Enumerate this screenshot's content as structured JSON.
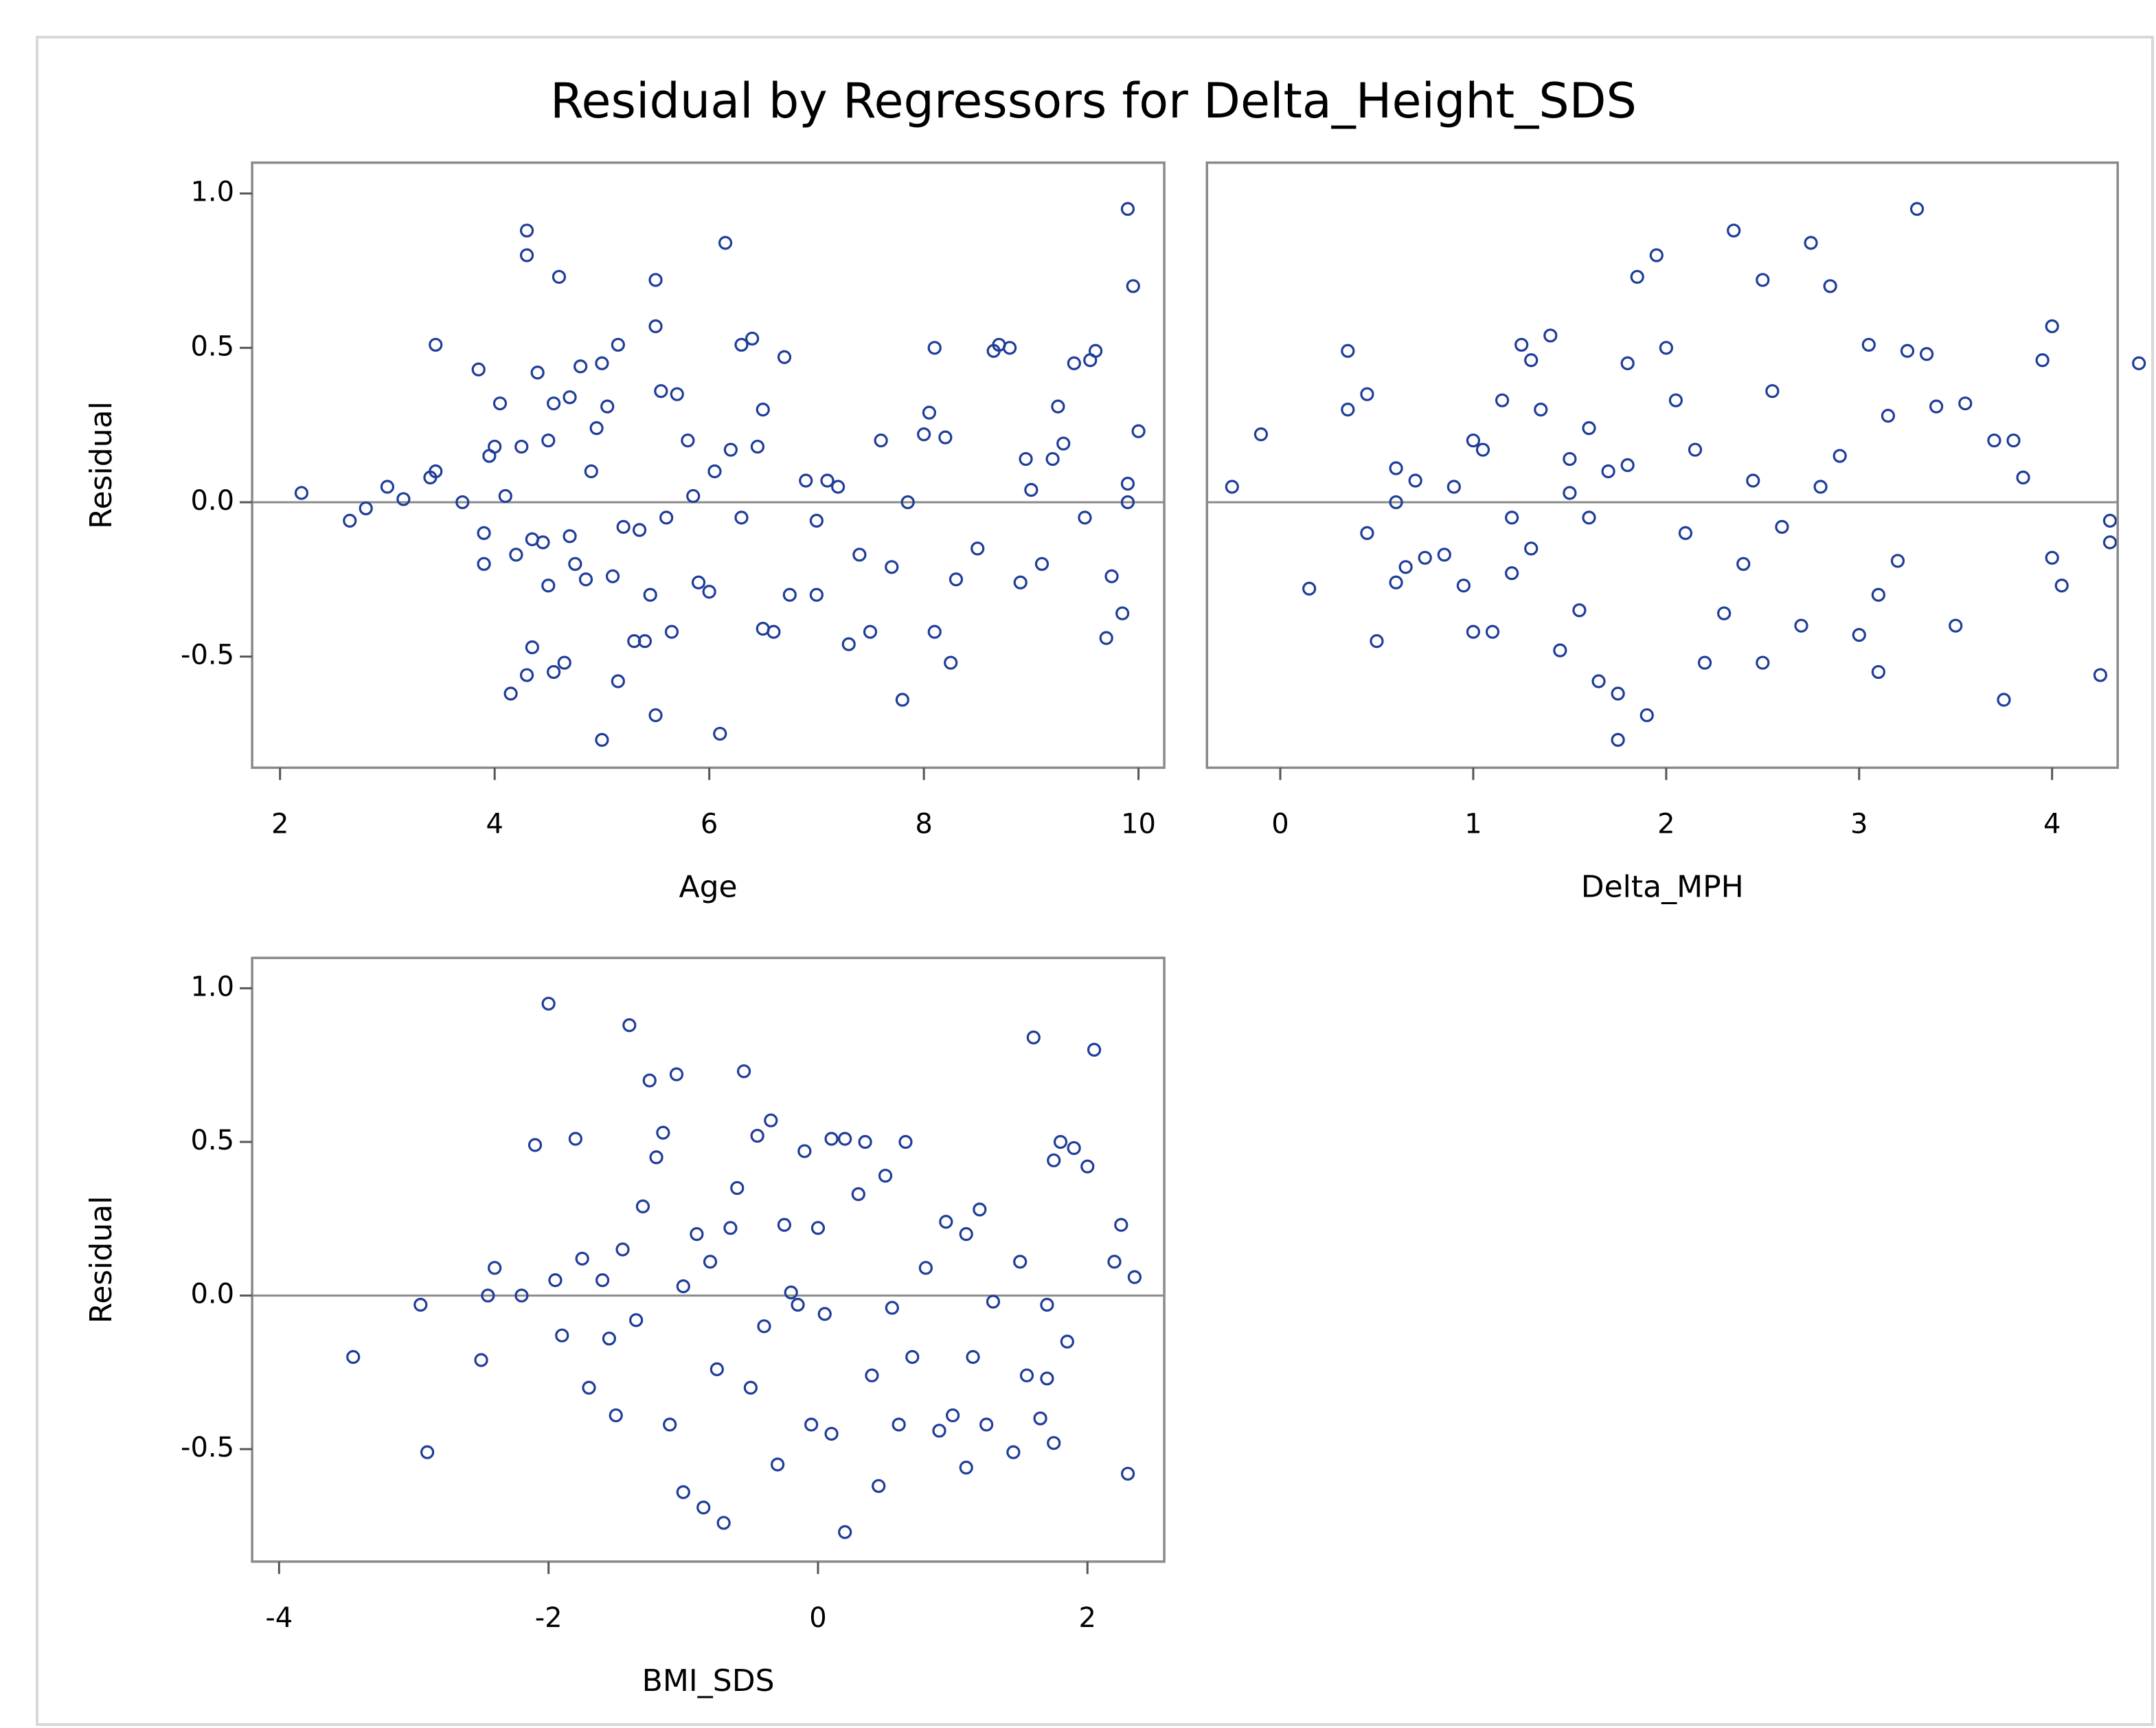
{
  "title": "Residual by Regressors for Delta_Height_SDS",
  "chart_data": [
    {
      "type": "scatter",
      "x_label": "Age",
      "y_label": "Residual",
      "color": "#1f3d99",
      "reference_line": 0,
      "xlim": [
        1.74,
        10.24
      ],
      "ylim": [
        -0.86,
        1.1
      ],
      "xticks": [
        2,
        4,
        6,
        8,
        10
      ],
      "yticks": [
        -0.5,
        {
          "value": 0,
          "label": "0.0"
        },
        0.5,
        {
          "value": 1,
          "label": "1.0"
        }
      ],
      "x": [
        2.2,
        2.65,
        2.8,
        3.0,
        3.15,
        3.4,
        3.45,
        3.45,
        3.7,
        3.85,
        3.9,
        3.9,
        3.95,
        4.0,
        4.05,
        4.1,
        4.15,
        4.2,
        4.25,
        4.3,
        4.3,
        4.3,
        4.35,
        4.35,
        4.4,
        4.45,
        4.5,
        4.5,
        4.55,
        4.55,
        4.6,
        4.65,
        4.7,
        4.7,
        4.75,
        4.8,
        4.85,
        4.9,
        4.95,
        5.0,
        5.0,
        5.05,
        5.1,
        5.15,
        5.15,
        5.2,
        5.3,
        5.35,
        5.4,
        5.45,
        5.5,
        5.5,
        5.5,
        5.55,
        5.6,
        5.65,
        5.7,
        5.8,
        5.85,
        5.9,
        6.0,
        6.05,
        6.1,
        6.15,
        6.2,
        6.3,
        6.3,
        6.4,
        6.45,
        6.5,
        6.5,
        6.6,
        6.7,
        6.75,
        6.9,
        7.0,
        7.0,
        7.1,
        7.2,
        7.3,
        7.4,
        7.5,
        7.6,
        7.7,
        7.8,
        7.85,
        8.0,
        8.05,
        8.1,
        8.1,
        8.2,
        8.25,
        8.3,
        8.5,
        8.65,
        8.7,
        8.8,
        8.9,
        8.95,
        9.0,
        9.1,
        9.2,
        9.25,
        9.3,
        9.4,
        9.5,
        9.55,
        9.6,
        9.7,
        9.75,
        9.85,
        9.9,
        9.9,
        9.95,
        10.0,
        9.9
      ],
      "values": [
        0.03,
        -0.06,
        -0.02,
        0.05,
        0.01,
        0.08,
        0.51,
        0.1,
        0,
        0.43,
        -0.1,
        -0.2,
        0.15,
        0.18,
        0.32,
        0.02,
        -0.62,
        -0.17,
        0.18,
        0.88,
        0.8,
        -0.56,
        -0.12,
        -0.47,
        0.42,
        -0.13,
        0.2,
        -0.27,
        0.32,
        -0.55,
        0.73,
        -0.52,
        0.34,
        -0.11,
        -0.2,
        0.44,
        -0.25,
        0.1,
        0.24,
        0.45,
        -0.77,
        0.31,
        -0.24,
        0.51,
        -0.58,
        -0.08,
        -0.45,
        -0.09,
        -0.45,
        -0.3,
        0.72,
        0.57,
        -0.69,
        0.36,
        -0.05,
        -0.42,
        0.35,
        0.2,
        0.02,
        -0.26,
        -0.29,
        0.1,
        -0.75,
        0.84,
        0.17,
        0.51,
        -0.05,
        0.53,
        0.18,
        -0.41,
        0.3,
        -0.42,
        0.47,
        -0.3,
        0.07,
        -0.06,
        -0.3,
        0.07,
        0.05,
        -0.46,
        -0.17,
        -0.42,
        0.2,
        -0.21,
        -0.64,
        0,
        0.22,
        0.29,
        0.5,
        -0.42,
        0.21,
        -0.52,
        -0.25,
        -0.15,
        0.49,
        0.51,
        0.5,
        -0.26,
        0.14,
        0.04,
        -0.2,
        0.14,
        0.31,
        0.19,
        0.45,
        -0.05,
        0.46,
        0.49,
        -0.44,
        -0.24,
        -0.36,
        0.95,
        0.06,
        0.7,
        0.23,
        0
      ]
    },
    {
      "type": "scatter",
      "x_label": "Delta_MPH",
      "color": "#1f3d99",
      "reference_line": 0,
      "xlim": [
        -0.38,
        4.34
      ],
      "ylim": [
        -0.86,
        1.1
      ],
      "xticks": [
        0,
        1,
        2,
        3,
        4
      ],
      "x": [
        -0.25,
        -0.1,
        0.15,
        0.35,
        0.35,
        0.45,
        0.45,
        0.5,
        0.6,
        0.6,
        0.6,
        0.65,
        0.7,
        0.75,
        0.85,
        0.9,
        0.95,
        1.0,
        1.0,
        1.05,
        1.1,
        1.15,
        1.2,
        1.25,
        1.3,
        1.3,
        1.35,
        1.4,
        1.45,
        1.5,
        1.55,
        1.6,
        1.65,
        1.7,
        1.75,
        1.75,
        1.8,
        1.85,
        1.9,
        1.95,
        2.0,
        2.05,
        2.1,
        2.15,
        2.2,
        2.3,
        2.35,
        2.45,
        2.5,
        2.5,
        2.55,
        2.6,
        2.7,
        2.75,
        2.8,
        2.85,
        2.9,
        3.0,
        3.05,
        3.1,
        3.1,
        3.15,
        3.2,
        3.25,
        3.3,
        3.35,
        3.4,
        3.5,
        3.55,
        3.7,
        3.75,
        3.8,
        3.85,
        3.95,
        4.0,
        4.0,
        4.05,
        4.25,
        4.3,
        4.3,
        4.45,
        1.5,
        1.6,
        1.8,
        1.2,
        2.4
      ],
      "values": [
        0.05,
        0.22,
        -0.28,
        0.49,
        0.3,
        0.35,
        -0.1,
        -0.45,
        0.11,
        0,
        -0.26,
        -0.21,
        0.07,
        -0.18,
        -0.17,
        0.05,
        -0.27,
        0.2,
        -0.42,
        0.17,
        -0.42,
        0.33,
        -0.05,
        0.51,
        0.46,
        -0.15,
        0.3,
        0.54,
        -0.48,
        0.14,
        -0.35,
        0.24,
        -0.58,
        0.1,
        -0.62,
        -0.77,
        0.45,
        0.73,
        -0.69,
        0.8,
        0.5,
        0.33,
        -0.1,
        0.17,
        -0.52,
        -0.36,
        0.88,
        0.07,
        0.72,
        -0.52,
        0.36,
        -0.08,
        -0.4,
        0.84,
        0.05,
        0.7,
        0.15,
        -0.43,
        0.51,
        -0.3,
        -0.55,
        0.28,
        -0.19,
        0.49,
        0.95,
        0.48,
        0.31,
        -0.4,
        0.32,
        0.2,
        -0.64,
        0.2,
        0.08,
        0.46,
        0.57,
        -0.18,
        -0.27,
        -0.56,
        -0.06,
        -0.13,
        0.45,
        0.03,
        -0.05,
        0.12,
        -0.23,
        -0.2
      ]
    },
    {
      "type": "scatter",
      "x_label": "BMI_SDS",
      "y_label": "Residual",
      "color": "#1f3d99",
      "reference_line": 0,
      "xlim": [
        -4.2,
        2.57
      ],
      "ylim": [
        -0.866,
        1.099
      ],
      "xticks": [
        -4,
        -2,
        0,
        2
      ],
      "yticks": [
        -0.5,
        {
          "value": 0,
          "label": "0.0"
        },
        0.5,
        {
          "value": 1,
          "label": "1.0"
        }
      ],
      "x": [
        -3.45,
        -2.95,
        -2.9,
        -2.5,
        -2.45,
        -2.4,
        -2.2,
        -2.1,
        -2.0,
        -1.95,
        -1.9,
        -1.8,
        -1.75,
        -1.7,
        -1.6,
        -1.55,
        -1.5,
        -1.45,
        -1.4,
        -1.35,
        -1.3,
        -1.25,
        -1.2,
        -1.15,
        -1.1,
        -1.05,
        -1.0,
        -1.0,
        -0.9,
        -0.85,
        -0.8,
        -0.75,
        -0.7,
        -0.65,
        -0.6,
        -0.55,
        -0.5,
        -0.45,
        -0.4,
        -0.35,
        -0.3,
        -0.25,
        -0.2,
        -0.15,
        -0.1,
        -0.05,
        0,
        0.05,
        0.1,
        0.1,
        0.2,
        0.2,
        0.3,
        0.35,
        0.4,
        0.45,
        0.5,
        0.55,
        0.6,
        0.65,
        0.7,
        0.8,
        0.9,
        0.95,
        1.0,
        1.1,
        1.1,
        1.15,
        1.2,
        1.25,
        1.3,
        1.45,
        1.5,
        1.55,
        1.6,
        1.65,
        1.7,
        1.7,
        1.75,
        1.75,
        1.8,
        1.85,
        1.9,
        2.0,
        2.05,
        2.2,
        2.25,
        2.3,
        2.35
      ],
      "values": [
        -0.2,
        -0.03,
        -0.51,
        -0.21,
        0,
        0.09,
        0,
        0.49,
        0.95,
        0.05,
        -0.13,
        0.51,
        0.12,
        -0.3,
        0.05,
        -0.14,
        -0.39,
        0.15,
        0.88,
        -0.08,
        0.29,
        0.7,
        0.45,
        0.53,
        -0.42,
        0.72,
        0.03,
        -0.64,
        0.2,
        -0.69,
        0.11,
        -0.24,
        -0.74,
        0.22,
        0.35,
        0.73,
        -0.3,
        0.52,
        -0.1,
        0.57,
        -0.55,
        0.23,
        0.01,
        -0.03,
        0.47,
        -0.42,
        0.22,
        -0.06,
        0.51,
        -0.45,
        0.51,
        -0.77,
        0.33,
        0.5,
        -0.26,
        -0.62,
        0.39,
        -0.04,
        -0.42,
        0.5,
        -0.2,
        0.09,
        -0.44,
        0.24,
        -0.39,
        0.2,
        -0.56,
        -0.2,
        0.28,
        -0.42,
        -0.02,
        -0.51,
        0.11,
        -0.26,
        0.84,
        -0.4,
        -0.03,
        -0.27,
        0.44,
        -0.48,
        0.5,
        -0.15,
        0.48,
        0.42,
        0.8,
        0.11,
        0.23,
        -0.58,
        0.06
      ]
    }
  ]
}
